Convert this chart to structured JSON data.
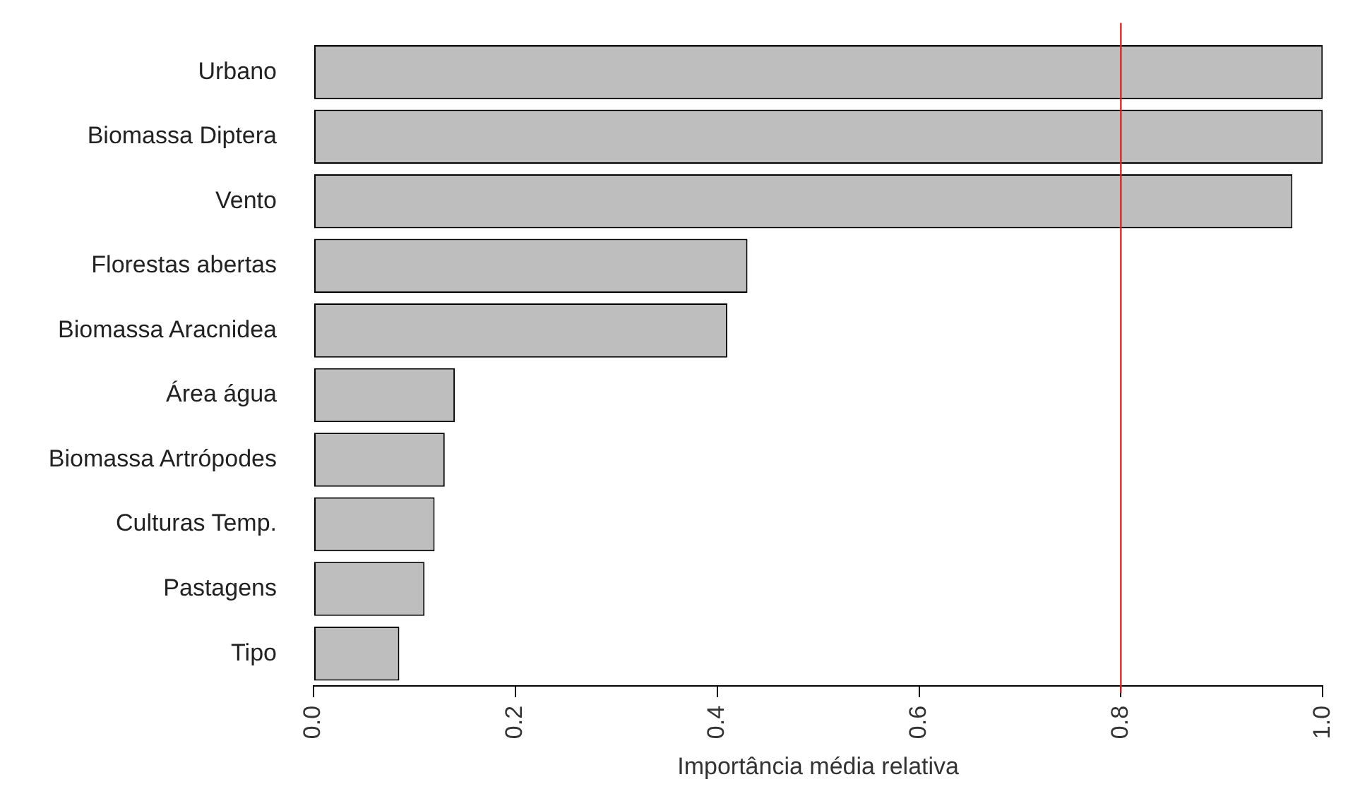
{
  "chart_data": {
    "type": "bar",
    "orientation": "horizontal",
    "xlabel": "Importância média relativa",
    "categories": [
      "Urbano",
      "Biomassa Diptera",
      "Vento",
      "Florestas abertas",
      "Biomassa Aracnidea",
      "Área água",
      "Biomassa Artrópodes",
      "Culturas Temp.",
      "Pastagens",
      "Tipo"
    ],
    "values": [
      1.0,
      1.0,
      0.97,
      0.43,
      0.41,
      0.14,
      0.13,
      0.12,
      0.11,
      0.085
    ],
    "color": "#bebebe",
    "xlim": [
      0,
      1
    ],
    "xticks": [
      {
        "value": 0,
        "label": "0.0"
      },
      {
        "value": 0.2,
        "label": "0.2"
      },
      {
        "value": 0.4,
        "label": "0.4"
      },
      {
        "value": 0.6,
        "label": "0.6"
      },
      {
        "value": 0.8,
        "label": "0.8"
      },
      {
        "value": 1,
        "label": "1.0"
      }
    ],
    "ref_lines": [
      {
        "axis": "x",
        "value": 0.8,
        "color": "#d62728"
      }
    ],
    "grid": false,
    "legend": false
  }
}
